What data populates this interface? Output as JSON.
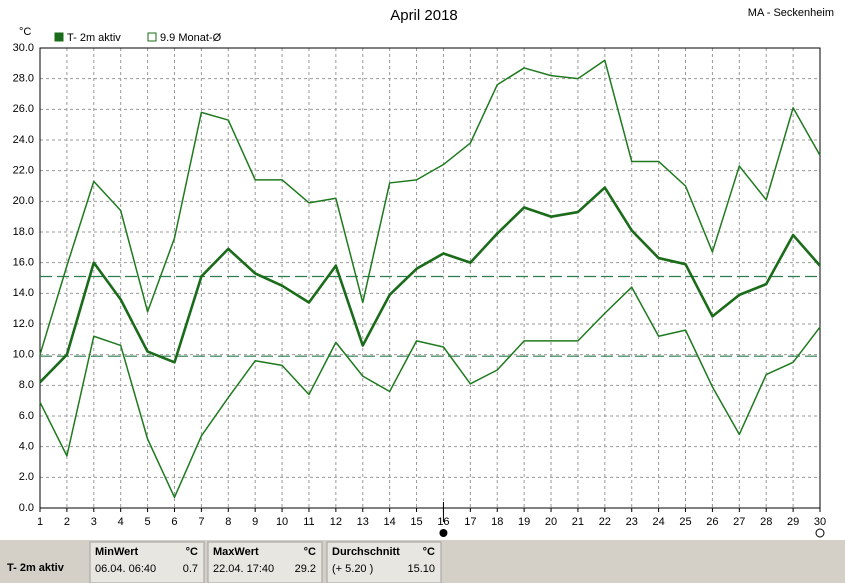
{
  "chart_data": {
    "type": "line",
    "title": "April 2018",
    "station": "MA - Seckenheim",
    "y_unit": "°C",
    "legend": [
      {
        "label": "T- 2m aktiv",
        "filled": true
      },
      {
        "label": "9.9 Monat-Ø",
        "filled": false
      }
    ],
    "x": [
      1,
      2,
      3,
      4,
      5,
      6,
      7,
      8,
      9,
      10,
      11,
      12,
      13,
      14,
      15,
      16,
      17,
      18,
      19,
      20,
      21,
      22,
      23,
      24,
      25,
      26,
      27,
      28,
      29,
      30
    ],
    "xlim": [
      1,
      30
    ],
    "xticks": [
      1,
      2,
      3,
      4,
      5,
      6,
      7,
      8,
      9,
      10,
      11,
      12,
      13,
      14,
      15,
      16,
      17,
      18,
      19,
      20,
      21,
      22,
      23,
      24,
      25,
      26,
      27,
      28,
      29,
      30
    ],
    "ylim": [
      0,
      30
    ],
    "yticks": [
      {
        "value": 0,
        "label": "0.0"
      },
      {
        "value": 2,
        "label": "2.0"
      },
      {
        "value": 4,
        "label": "4.0"
      },
      {
        "value": 6,
        "label": "6.0"
      },
      {
        "value": 8,
        "label": "8.0"
      },
      {
        "value": 10,
        "label": "10.0"
      },
      {
        "value": 12,
        "label": "12.0"
      },
      {
        "value": 14,
        "label": "14.0"
      },
      {
        "value": 16,
        "label": "16.0"
      },
      {
        "value": 18,
        "label": "18.0"
      },
      {
        "value": 20,
        "label": "20.0"
      },
      {
        "value": 22,
        "label": "22.0"
      },
      {
        "value": 24,
        "label": "24.0"
      },
      {
        "value": 26,
        "label": "26.0"
      },
      {
        "value": 28,
        "label": "28.0"
      },
      {
        "value": 30,
        "label": "30.0"
      }
    ],
    "grid": true,
    "series": [
      {
        "color": "#1f7a1f",
        "width": 1.5,
        "values": [
          10.0,
          15.8,
          21.3,
          19.4,
          12.8,
          17.6,
          25.8,
          25.3,
          21.4,
          21.4,
          19.9,
          20.2,
          13.4,
          21.2,
          21.4,
          22.4,
          23.8,
          27.6,
          28.7,
          28.2,
          28.0,
          29.2,
          22.6,
          22.6,
          21.0,
          16.7,
          22.3,
          20.1,
          26.1,
          23.0
        ]
      },
      {
        "color": "#1a6b1a",
        "width": 2.6,
        "values": [
          8.2,
          10.0,
          16.0,
          13.6,
          10.2,
          9.5,
          15.1,
          16.9,
          15.3,
          14.5,
          13.4,
          15.8,
          10.6,
          13.9,
          15.6,
          16.6,
          16.0,
          17.9,
          19.6,
          19.0,
          19.3,
          20.9,
          18.1,
          16.3,
          15.9,
          12.5,
          13.9,
          14.6,
          17.8,
          15.8
        ]
      },
      {
        "color": "#1f7a1f",
        "width": 1.5,
        "values": [
          6.9,
          3.4,
          11.2,
          10.6,
          4.5,
          0.7,
          4.7,
          7.2,
          9.6,
          9.3,
          7.4,
          10.8,
          8.6,
          7.6,
          10.9,
          10.5,
          8.1,
          9.0,
          10.9,
          10.9,
          10.9,
          12.7,
          14.4,
          11.2,
          11.6,
          7.9,
          4.8,
          8.7,
          9.5,
          11.8
        ]
      }
    ],
    "reference_lines": [
      {
        "value": 15.1,
        "color": "#2e7d4f"
      },
      {
        "value": 9.9,
        "color": "#2e7d4f"
      }
    ]
  },
  "stats": {
    "label": "T- 2m aktiv",
    "columns": [
      {
        "header": "MinWert",
        "unit": "°C",
        "time": "06.04.  06:40",
        "value": "0.7"
      },
      {
        "header": "MaxWert",
        "unit": "°C",
        "time": "22.04.  17:40",
        "value": "29.2"
      },
      {
        "header": "Durchschnitt",
        "unit": "°C",
        "time": "(+ 5.20 )",
        "value": "15.10"
      }
    ]
  }
}
